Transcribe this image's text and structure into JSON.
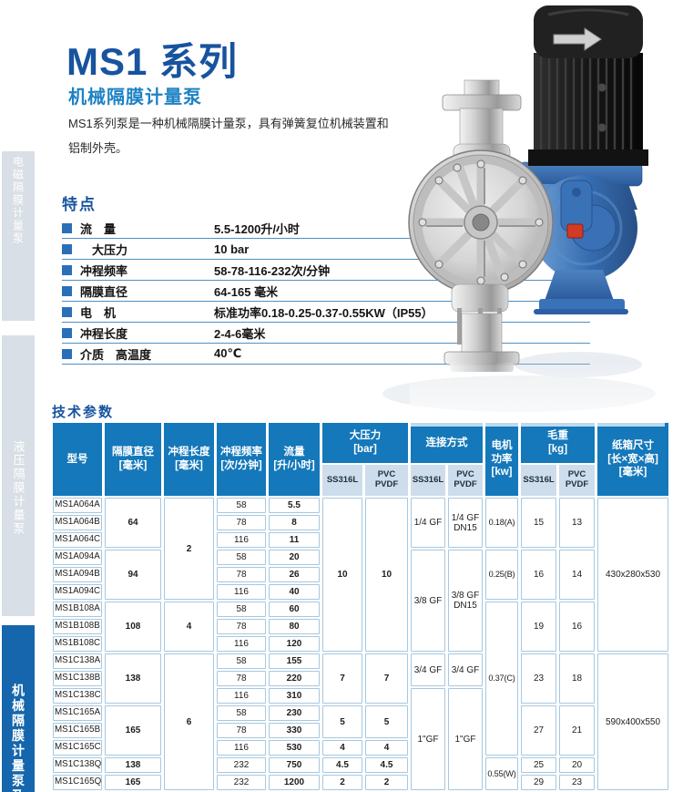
{
  "page": {
    "title": "MS1 系列",
    "subtitle": "机械隔膜计量泵",
    "description": "MS1系列泵是一种机械隔膜计量泵，具有弹簧复位机械装置和铝制外壳。"
  },
  "sidebar": {
    "items": [
      {
        "label": "电磁隔膜计量泵",
        "style": "gray"
      },
      {
        "label": "液压隔膜计量泵",
        "style": "gray"
      },
      {
        "label": "机械隔膜计量泵及",
        "style": "blue"
      }
    ]
  },
  "features": {
    "heading": "特点",
    "rows": [
      {
        "label": "流　量",
        "value": "5.5-1200升/小时"
      },
      {
        "label": "　大压力",
        "value": "10 bar"
      },
      {
        "label": "冲程频率",
        "value": "58-78-116-232次/分钟"
      },
      {
        "label": "隔膜直径",
        "value": "64-165 毫米"
      },
      {
        "label": "电　机",
        "value": "标准功率0.18-0.25-0.37-0.55KW（IP55）"
      },
      {
        "label": "冲程长度",
        "value": "2-4-6毫米"
      },
      {
        "label": "介质　高温度",
        "value": "40℃"
      }
    ]
  },
  "tech": {
    "heading": "技术参数"
  },
  "table": {
    "header_row1": [
      {
        "t": "型号",
        "rs": 2
      },
      {
        "t": "隔膜直径\n[毫米]",
        "rs": 2
      },
      {
        "t": "冲程长度\n[毫米]",
        "rs": 2
      },
      {
        "t": "冲程频率\n[次/分钟]",
        "rs": 2
      },
      {
        "t": "流量\n[升/小时]",
        "rs": 2
      },
      {
        "t": "大压力\n[bar]",
        "cs": 2
      },
      {
        "t": "连接方式",
        "cs": 2
      },
      {
        "t": "电机\n功率\n[kw]",
        "rs": 2
      },
      {
        "t": "毛重\n[kg]",
        "cs": 2
      },
      {
        "t": "纸箱尺寸\n[长×宽×高]\n[毫米]",
        "rs": 2
      }
    ],
    "header_row2": [
      "SS316L",
      "PVC\nPVDF",
      "SS316L",
      "PVC\nPVDF",
      "SS316L",
      "PVC\nPVDF"
    ],
    "rows": [
      [
        {
          "t": "MS1A064A"
        },
        {
          "t": "64",
          "rs": 3,
          "b": 1
        },
        {
          "t": "2",
          "rs": 6,
          "b": 1
        },
        {
          "t": "58"
        },
        {
          "t": "5.5",
          "b": 1
        },
        {
          "t": "10",
          "rs": 9,
          "b": 1
        },
        {
          "t": "10",
          "rs": 9,
          "b": 1
        },
        {
          "t": "1/4 GF",
          "rs": 3
        },
        {
          "t": "1/4 GF\nDN15",
          "rs": 3
        },
        {
          "t": "0.18(A)",
          "rs": 3,
          "c": "sm"
        },
        {
          "t": "15",
          "rs": 3
        },
        {
          "t": "13",
          "rs": 3
        },
        {
          "t": "430x280x530",
          "rs": 9
        }
      ],
      [
        {
          "t": "MS1A064B"
        },
        {
          "t": "78"
        },
        {
          "t": "8",
          "b": 1
        }
      ],
      [
        {
          "t": "MS1A064C"
        },
        {
          "t": "116"
        },
        {
          "t": "11",
          "b": 1
        }
      ],
      [
        {
          "t": "MS1A094A"
        },
        {
          "t": "94",
          "rs": 3,
          "b": 1
        },
        {
          "t": "58"
        },
        {
          "t": "20",
          "b": 1
        },
        {
          "t": "3/8 GF",
          "rs": 6
        },
        {
          "t": "3/8 GF\nDN15",
          "rs": 6
        },
        {
          "t": "0.25(B)",
          "rs": 3,
          "c": "sm"
        },
        {
          "t": "16",
          "rs": 3
        },
        {
          "t": "14",
          "rs": 3
        }
      ],
      [
        {
          "t": "MS1A094B"
        },
        {
          "t": "78"
        },
        {
          "t": "26",
          "b": 1
        }
      ],
      [
        {
          "t": "MS1A094C"
        },
        {
          "t": "116"
        },
        {
          "t": "40",
          "b": 1
        }
      ],
      [
        {
          "t": "MS1B108A"
        },
        {
          "t": "108",
          "rs": 3,
          "b": 1
        },
        {
          "t": "4",
          "rs": 3,
          "b": 1
        },
        {
          "t": "58"
        },
        {
          "t": "60",
          "b": 1
        },
        {
          "t": "0.37(C)",
          "rs": 9,
          "c": "sm"
        },
        {
          "t": "19",
          "rs": 3
        },
        {
          "t": "16",
          "rs": 3
        }
      ],
      [
        {
          "t": "MS1B108B"
        },
        {
          "t": "78"
        },
        {
          "t": "80",
          "b": 1
        }
      ],
      [
        {
          "t": "MS1B108C"
        },
        {
          "t": "116"
        },
        {
          "t": "120",
          "b": 1
        }
      ],
      [
        {
          "t": "MS1C138A"
        },
        {
          "t": "138",
          "rs": 3,
          "b": 1
        },
        {
          "t": "6",
          "rs": 8,
          "b": 1
        },
        {
          "t": "58"
        },
        {
          "t": "155",
          "b": 1
        },
        {
          "t": "7",
          "rs": 3,
          "b": 1
        },
        {
          "t": "7",
          "rs": 3,
          "b": 1
        },
        {
          "t": "3/4 GF",
          "rs": 2
        },
        {
          "t": "3/4 GF",
          "rs": 2
        },
        {
          "t": "23",
          "rs": 3
        },
        {
          "t": "18",
          "rs": 3
        },
        {
          "t": "590x400x550",
          "rs": 8
        }
      ],
      [
        {
          "t": "MS1C138B"
        },
        {
          "t": "78"
        },
        {
          "t": "220",
          "b": 1
        }
      ],
      [
        {
          "t": "MS1C138C"
        },
        {
          "t": "116"
        },
        {
          "t": "310",
          "b": 1
        },
        {
          "t": "1\"GF",
          "rs": 6
        },
        {
          "t": "1\"GF",
          "rs": 6
        }
      ],
      [
        {
          "t": "MS1C165A"
        },
        {
          "t": "165",
          "rs": 3,
          "b": 1
        },
        {
          "t": "58"
        },
        {
          "t": "230",
          "b": 1
        },
        {
          "t": "5",
          "rs": 2,
          "b": 1
        },
        {
          "t": "5",
          "rs": 2,
          "b": 1
        },
        {
          "t": "27",
          "rs": 3
        },
        {
          "t": "21",
          "rs": 3
        }
      ],
      [
        {
          "t": "MS1C165B"
        },
        {
          "t": "78"
        },
        {
          "t": "330",
          "b": 1
        }
      ],
      [
        {
          "t": "MS1C165C"
        },
        {
          "t": "116"
        },
        {
          "t": "530",
          "b": 1
        },
        {
          "t": "4",
          "b": 1
        },
        {
          "t": "4",
          "b": 1
        }
      ],
      [
        {
          "t": "MS1C138Q"
        },
        {
          "t": "138",
          "b": 1
        },
        {
          "t": "232"
        },
        {
          "t": "750",
          "b": 1
        },
        {
          "t": "4.5",
          "b": 1
        },
        {
          "t": "4.5",
          "b": 1
        },
        {
          "t": "0.55(W)",
          "rs": 2,
          "c": "sm"
        },
        {
          "t": "25"
        },
        {
          "t": "20"
        }
      ],
      [
        {
          "t": "MS1C165Q"
        },
        {
          "t": "165",
          "b": 1
        },
        {
          "t": "232"
        },
        {
          "t": "1200",
          "b": 1
        },
        {
          "t": "2",
          "b": 1
        },
        {
          "t": "2",
          "b": 1
        },
        {
          "t": "29"
        },
        {
          "t": "23"
        }
      ]
    ]
  },
  "colors": {
    "title_blue": "#17539f",
    "subtitle_blue": "#1e82c4",
    "table_header_bg": "#1478ba",
    "table_subheader_bg": "#cdddec",
    "cell_border": "#a5c8e1",
    "sidebar_gray": "#d8dfe6",
    "sidebar_blue": "#1566ac",
    "bullet_blue": "#2a70b8",
    "feature_line": "#4e90c4"
  }
}
